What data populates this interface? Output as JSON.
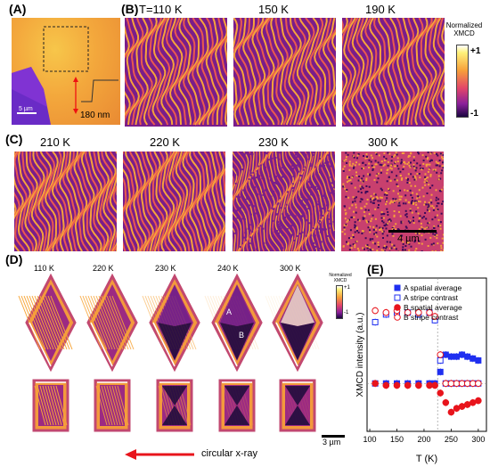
{
  "panels": {
    "A": {
      "label": "(A)",
      "scale": "5 µm",
      "height": "180 nm"
    },
    "B": {
      "label": "(B)",
      "temps": [
        "T=110 K",
        "150 K",
        "190 K"
      ]
    },
    "C": {
      "label": "(C)",
      "temps": [
        "210 K",
        "220 K",
        "230 K",
        "300 K"
      ],
      "scale": "4 µm"
    },
    "D": {
      "label": "(D)",
      "temps": [
        "110 K",
        "220 K",
        "230 K",
        "240 K",
        "300 K"
      ],
      "scale": "3 µm",
      "arrow_text": "circular x-ray",
      "region_a": "A",
      "region_b": "B"
    },
    "E": {
      "label": "(E)"
    }
  },
  "colorbar_main": {
    "title_l1": "Normalized",
    "title_l2": "XMCD",
    "max": "+1",
    "min": "-1"
  },
  "colorbar_small": {
    "title_l1": "Normalized",
    "title_l2": "XMCD",
    "max": "+1",
    "min": "-1"
  },
  "colors": {
    "blue": "#1f2ff0",
    "red": "#e8141c"
  },
  "chart_data": {
    "type": "scatter",
    "ylabel": "XMCD intensity (a.u.)",
    "xlabel": "T (K)",
    "xlim": [
      95,
      315
    ],
    "xticks": [
      "100",
      "150",
      "200",
      "250",
      "300"
    ],
    "legend": [
      "A spatial average",
      "A stripe contrast",
      "B spatial average",
      "B stripe contrast"
    ],
    "series": [
      {
        "name": "A spatial average",
        "marker": "filled-square",
        "color": "#1f2ff0",
        "x": [
          110,
          130,
          150,
          170,
          190,
          210,
          220,
          230,
          240,
          250,
          260,
          270,
          280,
          290,
          300
        ],
        "y": [
          0.0,
          0.0,
          0.0,
          0.0,
          0.0,
          0.0,
          0.0,
          0.06,
          0.15,
          0.14,
          0.14,
          0.15,
          0.14,
          0.13,
          0.12
        ]
      },
      {
        "name": "A stripe contrast",
        "marker": "open-square",
        "color": "#1f2ff0",
        "x": [
          110,
          130,
          150,
          170,
          190,
          210,
          220,
          230,
          240,
          250,
          260,
          270,
          280,
          290,
          300
        ],
        "y": [
          0.32,
          0.36,
          0.37,
          0.37,
          0.36,
          0.37,
          0.33,
          0.12,
          0.0,
          0.0,
          0.0,
          0.0,
          0.0,
          0.0,
          0.0
        ]
      },
      {
        "name": "B spatial average",
        "marker": "filled-circle",
        "color": "#e8141c",
        "x": [
          110,
          130,
          150,
          170,
          190,
          210,
          220,
          230,
          240,
          250,
          260,
          270,
          280,
          290,
          300
        ],
        "y": [
          0.0,
          -0.01,
          -0.01,
          -0.01,
          -0.01,
          -0.01,
          -0.01,
          -0.05,
          -0.1,
          -0.15,
          -0.13,
          -0.12,
          -0.11,
          -0.1,
          -0.09
        ]
      },
      {
        "name": "B stripe contrast",
        "marker": "open-circle",
        "color": "#e8141c",
        "x": [
          110,
          130,
          150,
          170,
          190,
          210,
          220,
          230,
          240,
          250,
          260,
          270,
          280,
          290,
          300
        ],
        "y": [
          0.38,
          0.37,
          0.38,
          0.37,
          0.37,
          0.37,
          0.35,
          0.15,
          0.0,
          0.0,
          0.0,
          0.0,
          0.0,
          0.0,
          0.0
        ]
      }
    ]
  }
}
